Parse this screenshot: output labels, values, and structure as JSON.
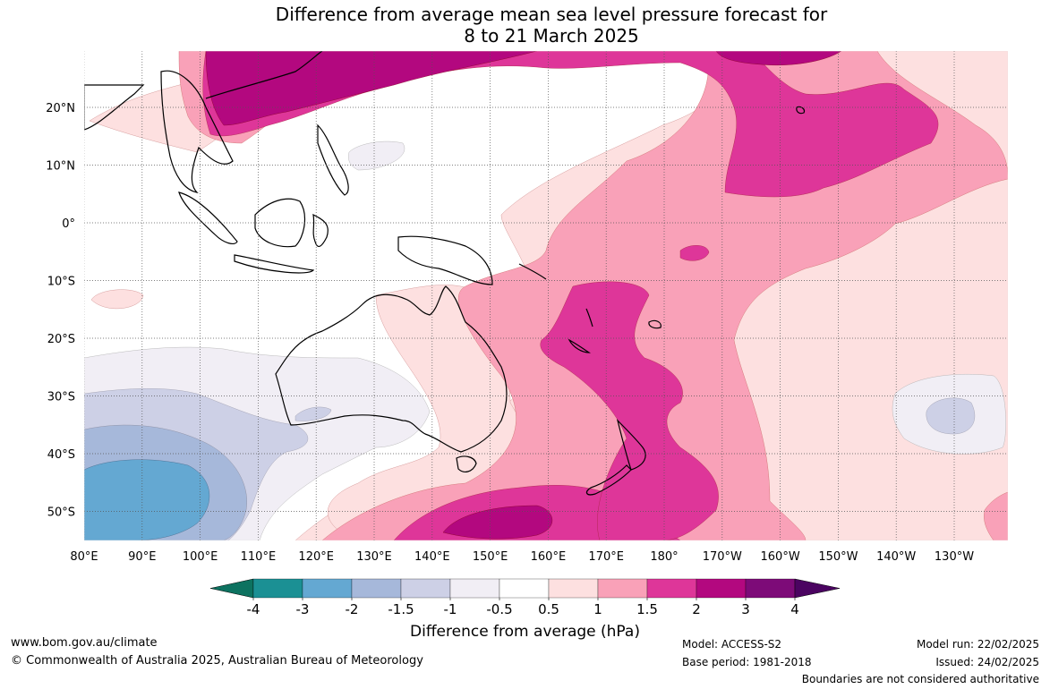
{
  "title_line1": "Difference from average mean sea level pressure forecast for",
  "title_line2": "8 to 21 March 2025",
  "lon_ticks": [
    "80°E",
    "90°E",
    "100°E",
    "110°E",
    "120°E",
    "130°E",
    "140°E",
    "150°E",
    "160°E",
    "170°E",
    "180°",
    "170°W",
    "160°W",
    "150°W",
    "140°W",
    "130°W"
  ],
  "lat_ticks": [
    "20°N",
    "10°N",
    "0°",
    "10°S",
    "20°S",
    "30°S",
    "40°S",
    "50°S"
  ],
  "colorbar": {
    "title": "Difference from average (hPa)",
    "labels": [
      "-4",
      "-3",
      "-2",
      "-1.5",
      "-1",
      "-0.5",
      "0.5",
      "1",
      "1.5",
      "2",
      "3",
      "4"
    ],
    "colors": [
      "#0d7260",
      "#1b9094",
      "#64a8d2",
      "#a6b8da",
      "#cdd0e6",
      "#f1eef5",
      "#ffffff",
      "#fde0e0",
      "#f9a1b8",
      "#de3699",
      "#b3087f",
      "#7d0b78",
      "#4b0461"
    ]
  },
  "footer": {
    "website": "www.bom.gov.au/climate",
    "copyright": "© Commonwealth of Australia 2025, Australian Bureau of Meteorology",
    "model": "Model: ACCESS-S2",
    "base_period": "Base period: 1981-2018",
    "model_run": "Model run: 22/02/2025",
    "issued": "Issued: 24/02/2025",
    "disclaimer": "Boundaries are not considered authoritative"
  }
}
